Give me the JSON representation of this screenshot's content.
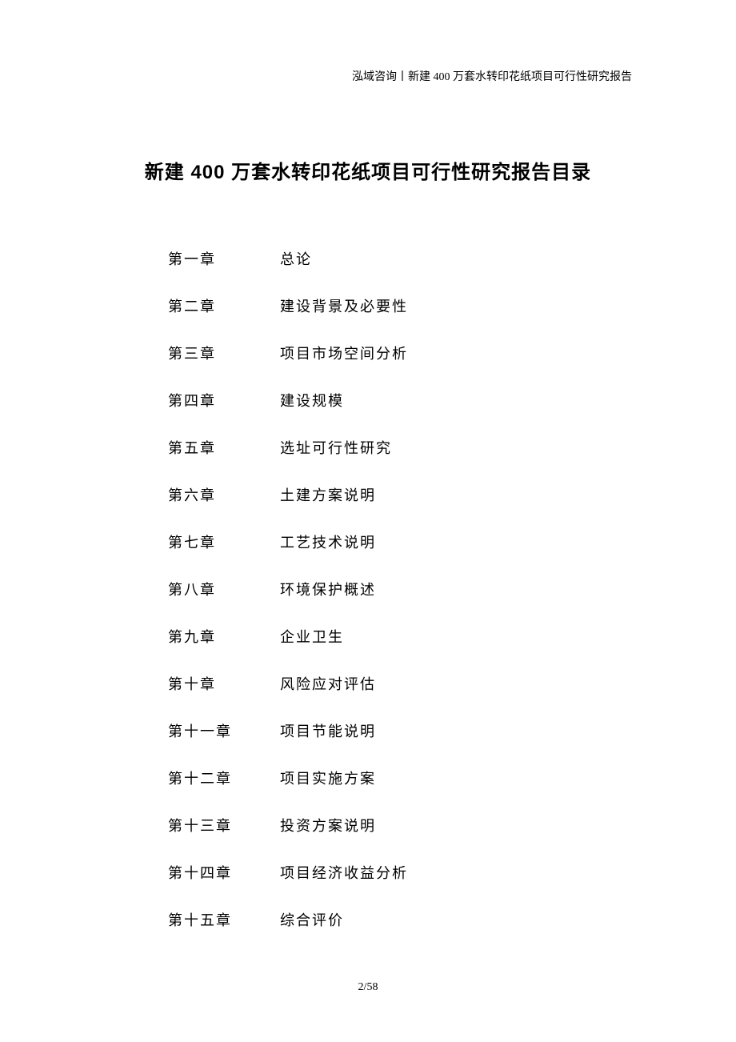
{
  "header": {
    "text": "泓域咨询丨新建 400 万套水转印花纸项目可行性研究报告"
  },
  "title": "新建 400 万套水转印花纸项目可行性研究报告目录",
  "toc": {
    "items": [
      {
        "chapter": "第一章",
        "name": "总论"
      },
      {
        "chapter": "第二章",
        "name": "建设背景及必要性"
      },
      {
        "chapter": "第三章",
        "name": "项目市场空间分析"
      },
      {
        "chapter": "第四章",
        "name": "建设规模"
      },
      {
        "chapter": "第五章",
        "name": "选址可行性研究"
      },
      {
        "chapter": "第六章",
        "name": "土建方案说明"
      },
      {
        "chapter": "第七章",
        "name": "工艺技术说明"
      },
      {
        "chapter": "第八章",
        "name": "环境保护概述"
      },
      {
        "chapter": "第九章",
        "name": "企业卫生"
      },
      {
        "chapter": "第十章",
        "name": "风险应对评估"
      },
      {
        "chapter": "第十一章",
        "name": "项目节能说明"
      },
      {
        "chapter": "第十二章",
        "name": "项目实施方案"
      },
      {
        "chapter": "第十三章",
        "name": "投资方案说明"
      },
      {
        "chapter": "第十四章",
        "name": "项目经济收益分析"
      },
      {
        "chapter": "第十五章",
        "name": "综合评价"
      }
    ]
  },
  "pageNumber": "2/58",
  "colors": {
    "background": "#ffffff",
    "text": "#000000"
  },
  "fonts": {
    "header_size": 14,
    "title_size": 24,
    "toc_size": 18,
    "page_number_size": 14
  }
}
